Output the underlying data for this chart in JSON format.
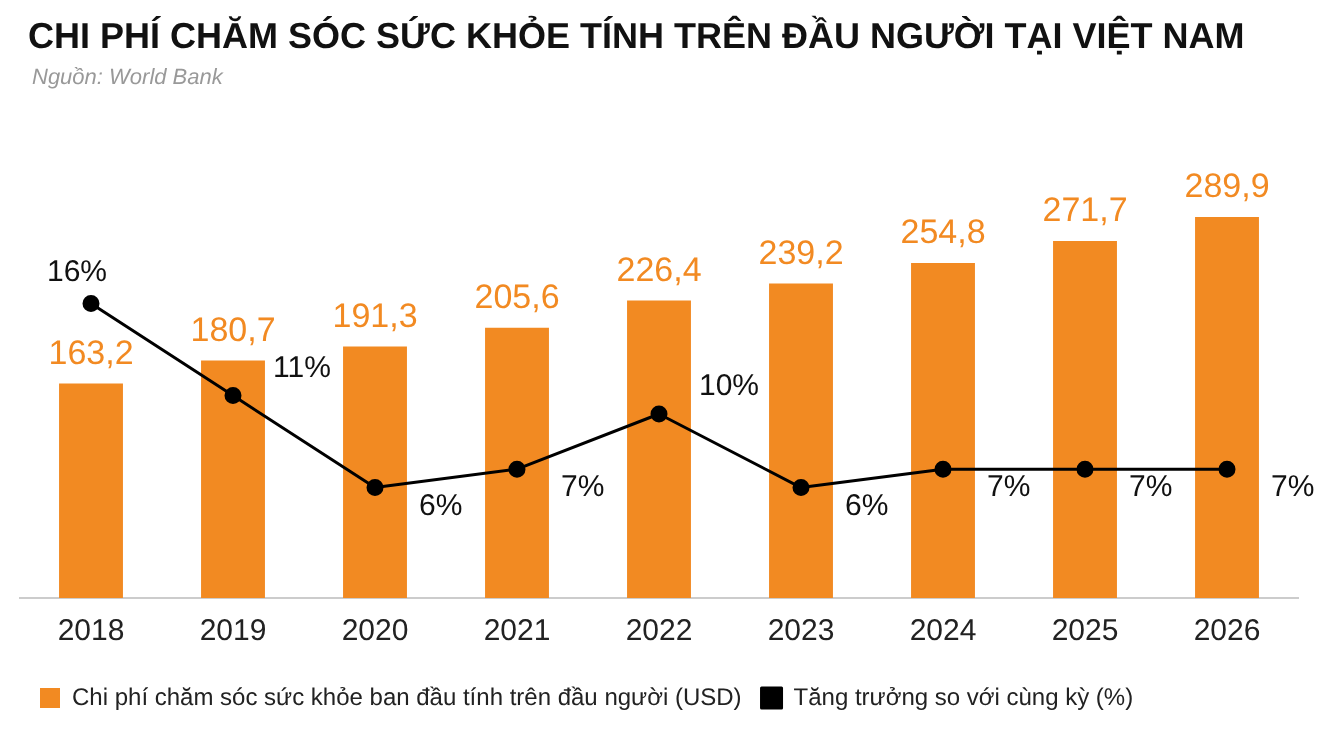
{
  "chart_data": {
    "type": "bar",
    "title": "CHI PHÍ CHĂM SÓC SỨC KHỎE TÍNH TRÊN ĐẦU NGƯỜI TẠI VIỆT NAM",
    "subtitle": "Nguồn: World Bank",
    "categories": [
      "2018",
      "2019",
      "2020",
      "2021",
      "2022",
      "2023",
      "2024",
      "2025",
      "2026"
    ],
    "series": [
      {
        "name": "Chi phí chăm sóc sức khỏe ban đầu tính trên đầu người (USD)",
        "color": "#f28a22",
        "values": [
          163.2,
          180.7,
          191.3,
          205.6,
          226.4,
          239.2,
          254.8,
          271.7,
          289.9
        ],
        "value_labels": [
          "163,2",
          "180,7",
          "191,3",
          "205,6",
          "226,4",
          "239,2",
          "254,8",
          "271,7",
          "289,9"
        ]
      },
      {
        "name": "Tăng trưởng so với cùng kỳ (%)",
        "type": "line",
        "axis": "y2",
        "color": "#000000",
        "values": [
          16,
          11,
          6,
          7,
          10,
          6,
          7,
          7,
          7
        ],
        "value_labels": [
          "16%",
          "11%",
          "6%",
          "7%",
          "10%",
          "6%",
          "7%",
          "7%",
          "7%"
        ]
      }
    ],
    "tick_labels": "x",
    "legend": "bottom",
    "marker": "circle",
    "line_style": "solid"
  }
}
